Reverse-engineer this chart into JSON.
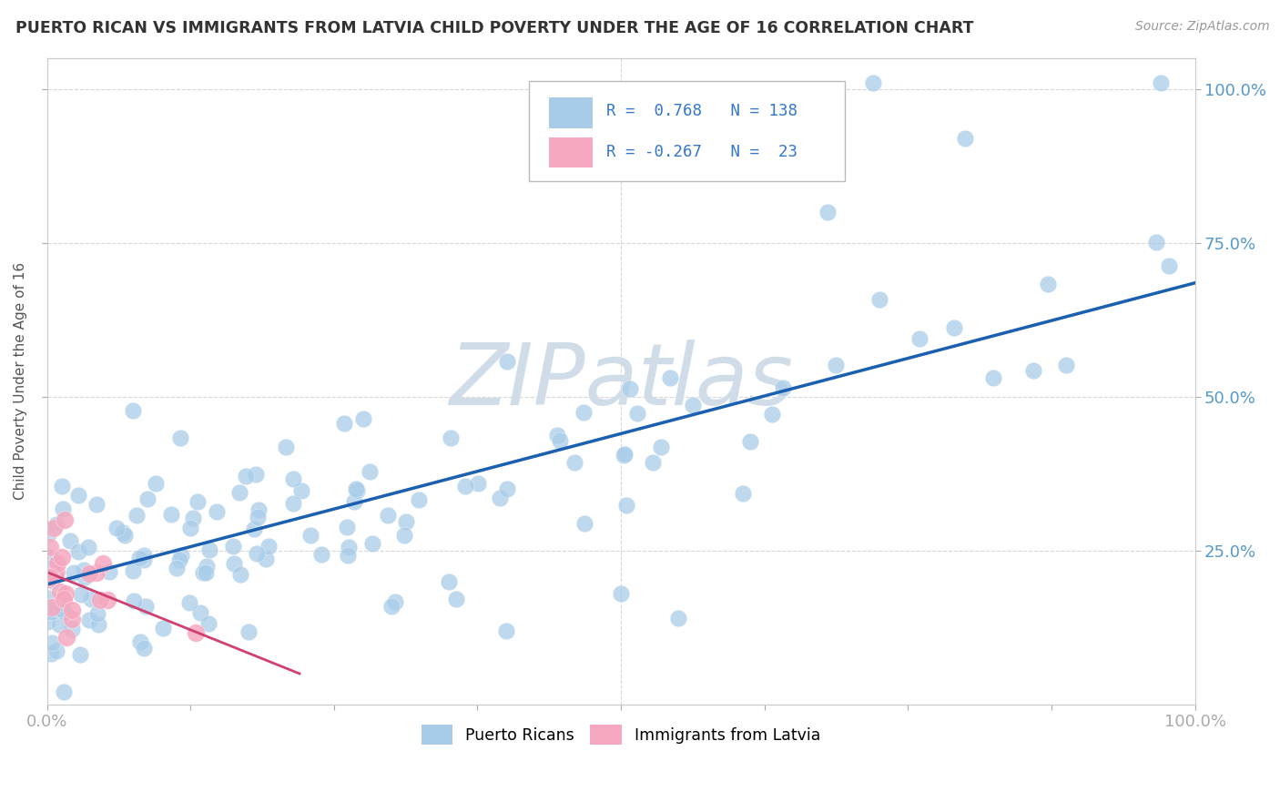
{
  "title": "PUERTO RICAN VS IMMIGRANTS FROM LATVIA CHILD POVERTY UNDER THE AGE OF 16 CORRELATION CHART",
  "source": "Source: ZipAtlas.com",
  "ylabel": "Child Poverty Under the Age of 16",
  "r_blue": 0.768,
  "n_blue": 138,
  "r_pink": -0.267,
  "n_pink": 23,
  "background_color": "#ffffff",
  "grid_color": "#d8d8d8",
  "blue_color": "#a8cce8",
  "blue_line_color": "#1a5fb0",
  "pink_color": "#f5a8c0",
  "pink_line_color": "#d04070",
  "title_color": "#333333",
  "axis_label_color": "#555555",
  "tick_label_color": "#5599cc",
  "legend_r_color": "#3377cc",
  "watermark_color": "#d0dde8",
  "blue_line_x0": 0.0,
  "blue_line_y0": 0.195,
  "blue_line_x1": 1.0,
  "blue_line_y1": 0.685,
  "pink_line_x0": 0.0,
  "pink_line_y0": 0.215,
  "pink_line_x1": 0.22,
  "pink_line_y1": 0.05,
  "xlim": [
    0.0,
    1.0
  ],
  "ylim": [
    0.0,
    1.05
  ]
}
